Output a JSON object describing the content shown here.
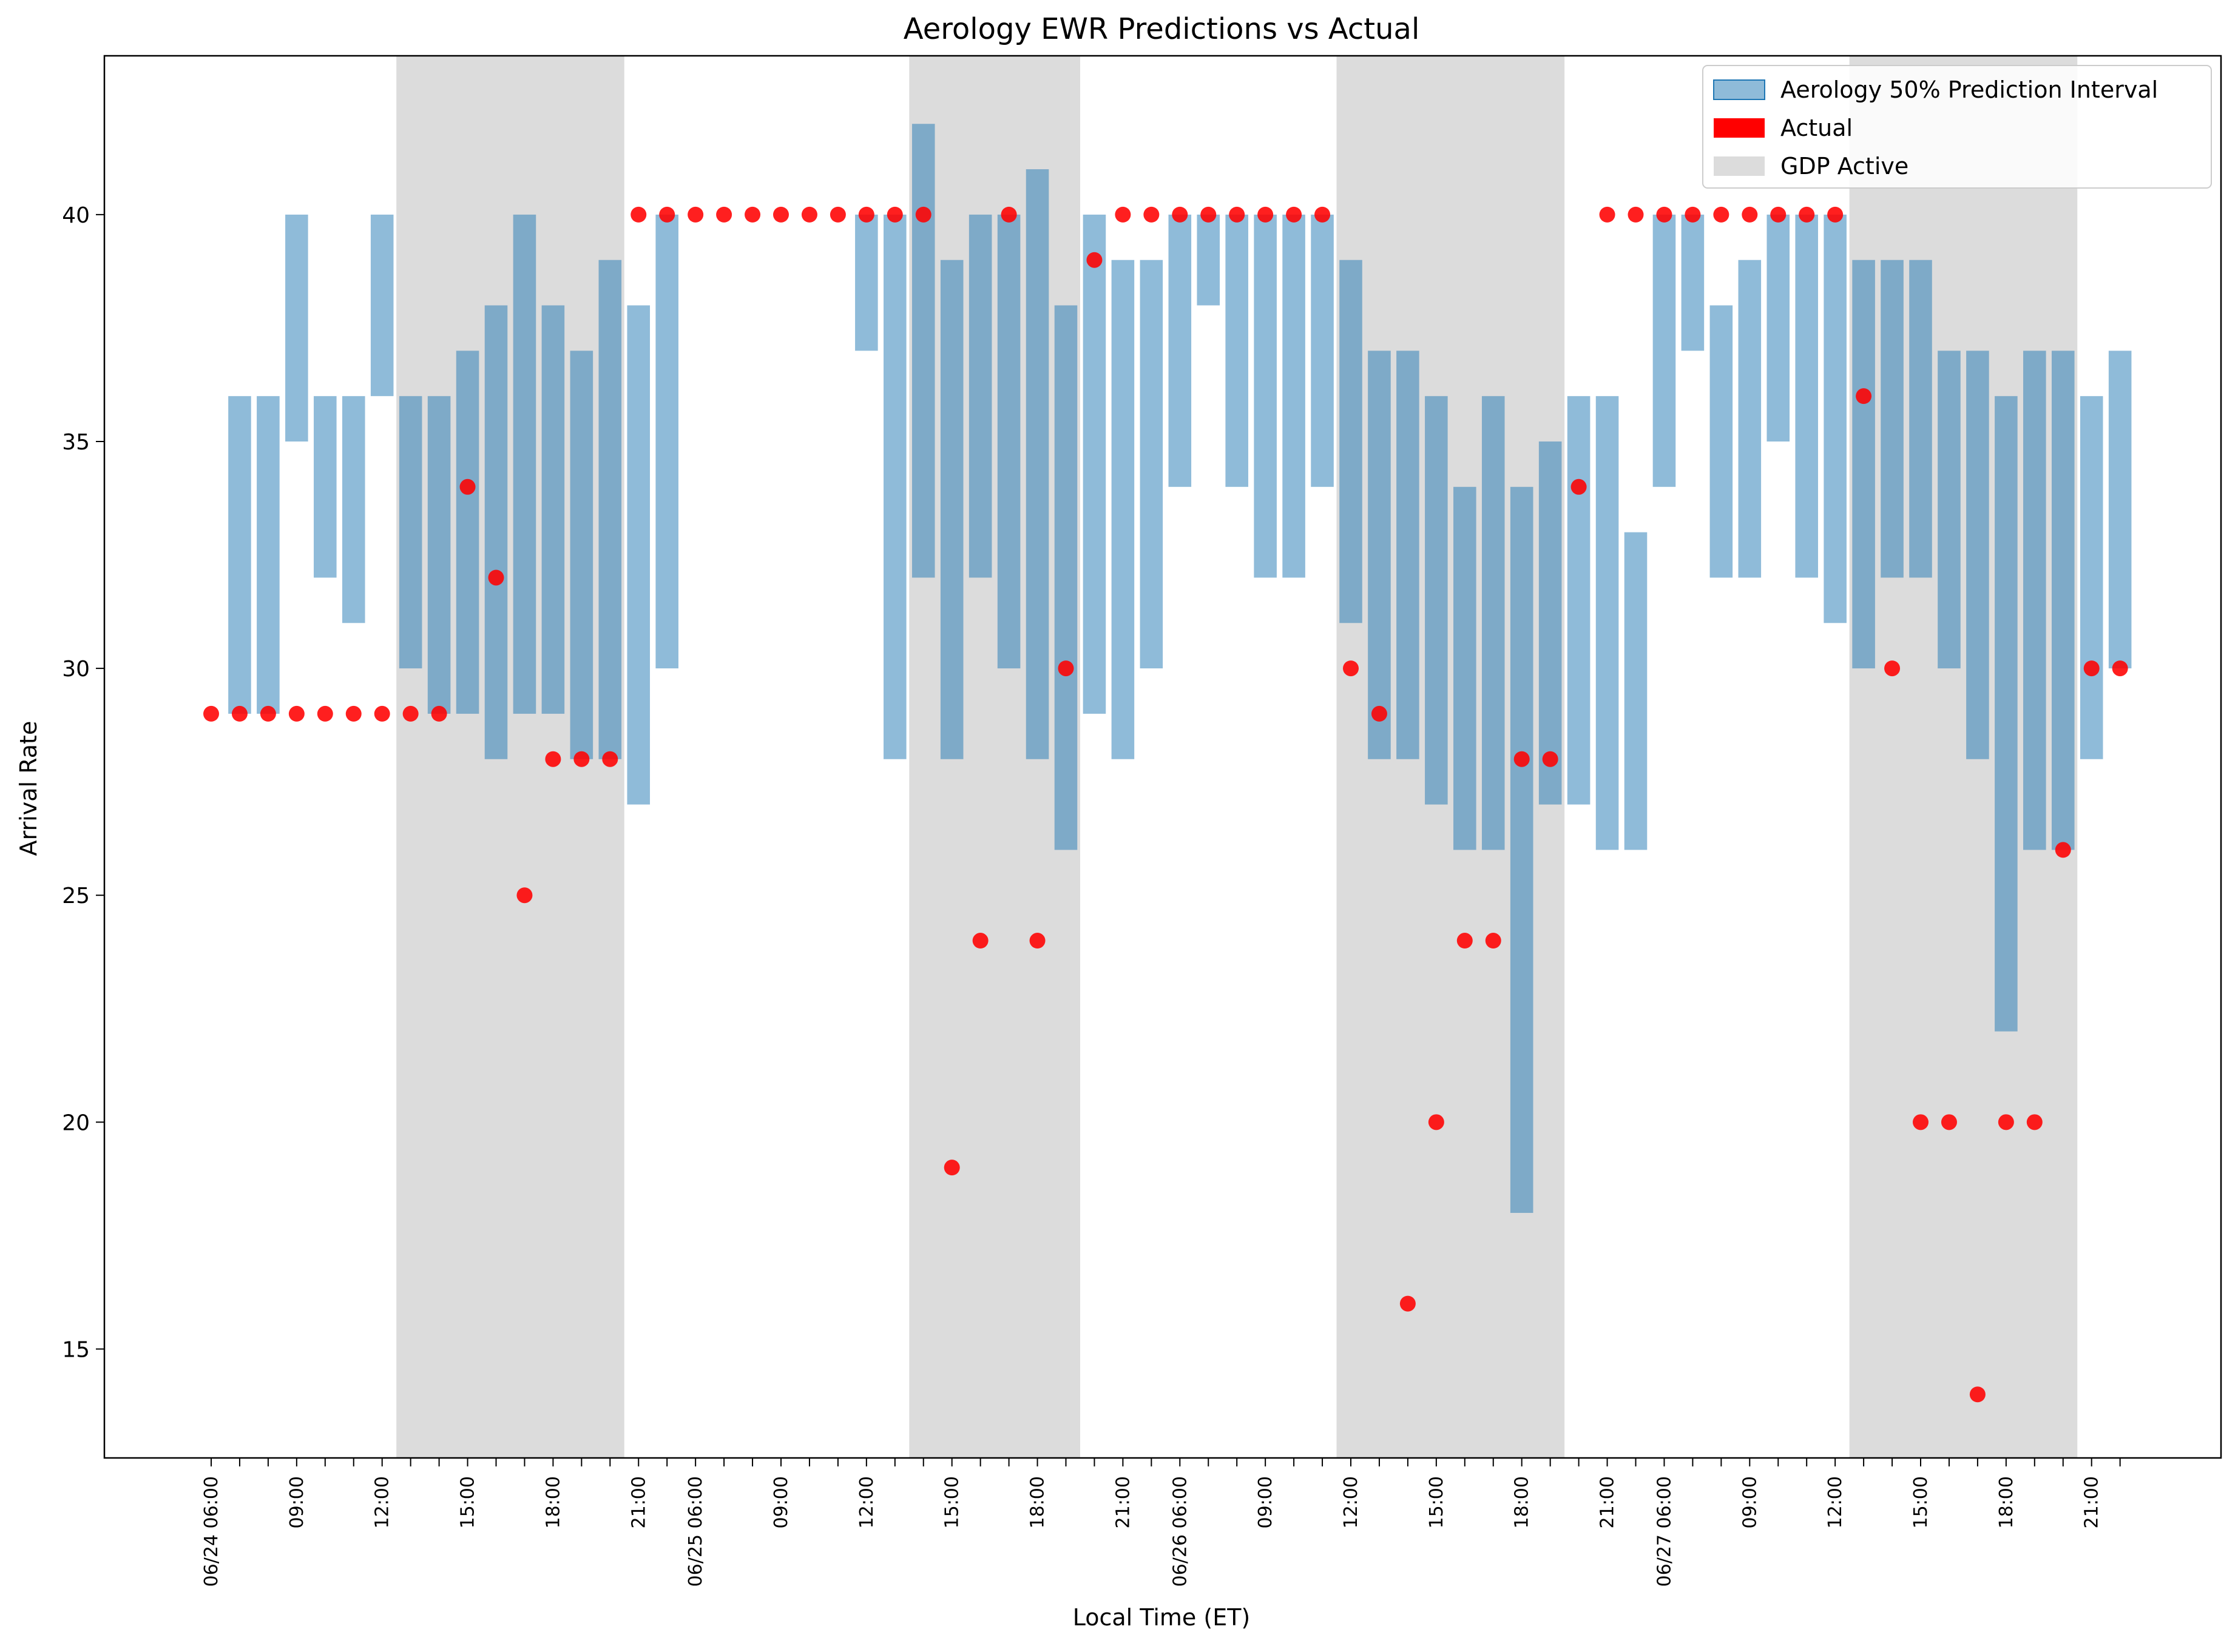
{
  "chart_data": {
    "type": "bar",
    "title": "Aerology EWR Predictions vs Actual",
    "xlabel": "Local Time (ET)",
    "ylabel": "Arrival Rate",
    "ylim": [
      12.6,
      43.5
    ],
    "yticks": [
      15,
      20,
      25,
      30,
      35,
      40
    ],
    "x_start": "06/24 06:00",
    "x_step_hours": 1,
    "x_count": 68,
    "xtick_labels": [
      {
        "i": 0,
        "label": "06/24 06:00"
      },
      {
        "i": 3,
        "label": "09:00"
      },
      {
        "i": 6,
        "label": "12:00"
      },
      {
        "i": 9,
        "label": "15:00"
      },
      {
        "i": 12,
        "label": "18:00"
      },
      {
        "i": 15,
        "label": "21:00"
      },
      {
        "i": 17,
        "label": "06/25 06:00"
      },
      {
        "i": 20,
        "label": "09:00"
      },
      {
        "i": 23,
        "label": "12:00"
      },
      {
        "i": 26,
        "label": "15:00"
      },
      {
        "i": 29,
        "label": "18:00"
      },
      {
        "i": 32,
        "label": "21:00"
      },
      {
        "i": 34,
        "label": "06/26 06:00"
      },
      {
        "i": 37,
        "label": "09:00"
      },
      {
        "i": 40,
        "label": "12:00"
      },
      {
        "i": 43,
        "label": "15:00"
      },
      {
        "i": 46,
        "label": "18:00"
      },
      {
        "i": 49,
        "label": "21:00"
      },
      {
        "i": 51,
        "label": "06/27 06:00"
      },
      {
        "i": 54,
        "label": "09:00"
      },
      {
        "i": 57,
        "label": "12:00"
      },
      {
        "i": 60,
        "label": "15:00"
      },
      {
        "i": 63,
        "label": "18:00"
      },
      {
        "i": 66,
        "label": "21:00"
      }
    ],
    "legend": {
      "placement": "top-right",
      "entries": [
        {
          "label": "Aerology 50% Prediction Interval",
          "color": "#7fb3d9"
        },
        {
          "label": "Actual",
          "color": "#ff0000"
        },
        {
          "label": "GDP Active",
          "color": "#dcdcdc"
        }
      ]
    },
    "gdp_active": [
      [
        6.5,
        14.5
      ],
      [
        24.5,
        30.5
      ],
      [
        39.5,
        47.5
      ],
      [
        57.5,
        65.5
      ]
    ],
    "prediction_interval": [
      {
        "i": 1,
        "low": 29,
        "high": 36
      },
      {
        "i": 2,
        "low": 29,
        "high": 36
      },
      {
        "i": 3,
        "low": 35,
        "high": 40
      },
      {
        "i": 4,
        "low": 32,
        "high": 36
      },
      {
        "i": 5,
        "low": 31,
        "high": 36
      },
      {
        "i": 6,
        "low": 36,
        "high": 40
      },
      {
        "i": 7,
        "low": 30,
        "high": 36
      },
      {
        "i": 8,
        "low": 29,
        "high": 36
      },
      {
        "i": 9,
        "low": 29,
        "high": 37
      },
      {
        "i": 10,
        "low": 28,
        "high": 38
      },
      {
        "i": 11,
        "low": 29,
        "high": 40
      },
      {
        "i": 12,
        "low": 29,
        "high": 38
      },
      {
        "i": 13,
        "low": 28,
        "high": 37
      },
      {
        "i": 14,
        "low": 28,
        "high": 39
      },
      {
        "i": 15,
        "low": 27,
        "high": 38
      },
      {
        "i": 16,
        "low": 30,
        "high": 40
      },
      {
        "i": 23,
        "low": 37,
        "high": 40
      },
      {
        "i": 24,
        "low": 28,
        "high": 40
      },
      {
        "i": 25,
        "low": 32,
        "high": 42
      },
      {
        "i": 26,
        "low": 28,
        "high": 39
      },
      {
        "i": 27,
        "low": 32,
        "high": 40
      },
      {
        "i": 28,
        "low": 30,
        "high": 40
      },
      {
        "i": 29,
        "low": 28,
        "high": 41
      },
      {
        "i": 30,
        "low": 26,
        "high": 38
      },
      {
        "i": 31,
        "low": 29,
        "high": 40
      },
      {
        "i": 32,
        "low": 28,
        "high": 39
      },
      {
        "i": 33,
        "low": 30,
        "high": 39
      },
      {
        "i": 34,
        "low": 34,
        "high": 40
      },
      {
        "i": 35,
        "low": 38,
        "high": 40
      },
      {
        "i": 36,
        "low": 34,
        "high": 40
      },
      {
        "i": 37,
        "low": 32,
        "high": 40
      },
      {
        "i": 38,
        "low": 32,
        "high": 40
      },
      {
        "i": 39,
        "low": 34,
        "high": 40
      },
      {
        "i": 40,
        "low": 31,
        "high": 39
      },
      {
        "i": 41,
        "low": 28,
        "high": 37
      },
      {
        "i": 42,
        "low": 28,
        "high": 37
      },
      {
        "i": 43,
        "low": 27,
        "high": 36
      },
      {
        "i": 44,
        "low": 26,
        "high": 34
      },
      {
        "i": 45,
        "low": 26,
        "high": 36
      },
      {
        "i": 46,
        "low": 18,
        "high": 34
      },
      {
        "i": 47,
        "low": 27,
        "high": 35
      },
      {
        "i": 48,
        "low": 27,
        "high": 36
      },
      {
        "i": 49,
        "low": 26,
        "high": 36
      },
      {
        "i": 50,
        "low": 26,
        "high": 33
      },
      {
        "i": 51,
        "low": 34,
        "high": 40
      },
      {
        "i": 52,
        "low": 37,
        "high": 40
      },
      {
        "i": 53,
        "low": 32,
        "high": 38
      },
      {
        "i": 54,
        "low": 32,
        "high": 39
      },
      {
        "i": 55,
        "low": 35,
        "high": 40
      },
      {
        "i": 56,
        "low": 32,
        "high": 40
      },
      {
        "i": 57,
        "low": 31,
        "high": 40
      },
      {
        "i": 58,
        "low": 30,
        "high": 39
      },
      {
        "i": 59,
        "low": 32,
        "high": 39
      },
      {
        "i": 60,
        "low": 32,
        "high": 39
      },
      {
        "i": 61,
        "low": 30,
        "high": 37
      },
      {
        "i": 62,
        "low": 28,
        "high": 37
      },
      {
        "i": 63,
        "low": 22,
        "high": 36
      },
      {
        "i": 64,
        "low": 26,
        "high": 37
      },
      {
        "i": 65,
        "low": 26,
        "high": 37
      },
      {
        "i": 66,
        "low": 28,
        "high": 36
      },
      {
        "i": 67,
        "low": 30,
        "high": 37
      }
    ],
    "actual": [
      {
        "i": 0,
        "value": 29
      },
      {
        "i": 1,
        "value": 29
      },
      {
        "i": 2,
        "value": 29
      },
      {
        "i": 3,
        "value": 29
      },
      {
        "i": 4,
        "value": 29
      },
      {
        "i": 5,
        "value": 29
      },
      {
        "i": 6,
        "value": 29
      },
      {
        "i": 7,
        "value": 29
      },
      {
        "i": 8,
        "value": 29
      },
      {
        "i": 9,
        "value": 34
      },
      {
        "i": 10,
        "value": 32
      },
      {
        "i": 11,
        "value": 25
      },
      {
        "i": 12,
        "value": 28
      },
      {
        "i": 13,
        "value": 28
      },
      {
        "i": 14,
        "value": 28
      },
      {
        "i": 15,
        "value": 40
      },
      {
        "i": 16,
        "value": 40
      },
      {
        "i": 17,
        "value": 40
      },
      {
        "i": 18,
        "value": 40
      },
      {
        "i": 19,
        "value": 40
      },
      {
        "i": 20,
        "value": 40
      },
      {
        "i": 21,
        "value": 40
      },
      {
        "i": 22,
        "value": 40
      },
      {
        "i": 23,
        "value": 40
      },
      {
        "i": 24,
        "value": 40
      },
      {
        "i": 25,
        "value": 40
      },
      {
        "i": 26,
        "value": 19
      },
      {
        "i": 27,
        "value": 24
      },
      {
        "i": 28,
        "value": 40
      },
      {
        "i": 29,
        "value": 24
      },
      {
        "i": 30,
        "value": 30
      },
      {
        "i": 31,
        "value": 39
      },
      {
        "i": 32,
        "value": 40
      },
      {
        "i": 33,
        "value": 40
      },
      {
        "i": 34,
        "value": 40
      },
      {
        "i": 35,
        "value": 40
      },
      {
        "i": 36,
        "value": 40
      },
      {
        "i": 37,
        "value": 40
      },
      {
        "i": 38,
        "value": 40
      },
      {
        "i": 39,
        "value": 40
      },
      {
        "i": 40,
        "value": 30
      },
      {
        "i": 41,
        "value": 29
      },
      {
        "i": 42,
        "value": 16
      },
      {
        "i": 43,
        "value": 20
      },
      {
        "i": 44,
        "value": 24
      },
      {
        "i": 45,
        "value": 24
      },
      {
        "i": 46,
        "value": 28
      },
      {
        "i": 47,
        "value": 28
      },
      {
        "i": 48,
        "value": 34
      },
      {
        "i": 49,
        "value": 40
      },
      {
        "i": 50,
        "value": 40
      },
      {
        "i": 51,
        "value": 40
      },
      {
        "i": 52,
        "value": 40
      },
      {
        "i": 53,
        "value": 40
      },
      {
        "i": 54,
        "value": 40
      },
      {
        "i": 55,
        "value": 40
      },
      {
        "i": 56,
        "value": 40
      },
      {
        "i": 57,
        "value": 40
      },
      {
        "i": 58,
        "value": 36
      },
      {
        "i": 59,
        "value": 30
      },
      {
        "i": 60,
        "value": 20
      },
      {
        "i": 61,
        "value": 20
      },
      {
        "i": 62,
        "value": 14
      },
      {
        "i": 63,
        "value": 20
      },
      {
        "i": 64,
        "value": 20
      },
      {
        "i": 65,
        "value": 26
      },
      {
        "i": 66,
        "value": 30
      },
      {
        "i": 67,
        "value": 30
      }
    ]
  }
}
